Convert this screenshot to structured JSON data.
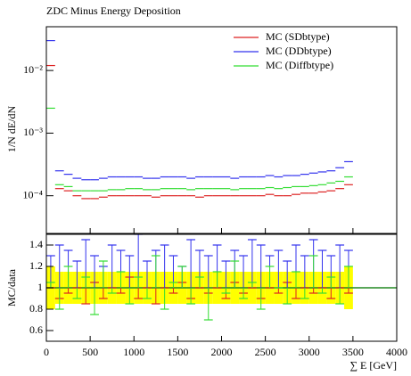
{
  "chart_data": [
    {
      "type": "histogram",
      "title": "ZDC Minus Energy Deposition",
      "ylabel": "1/N dE/dN",
      "log_y": true,
      "bins": [
        0,
        100,
        200,
        300,
        400,
        500,
        600,
        700,
        800,
        900,
        1000,
        1100,
        1200,
        1300,
        1400,
        1500,
        1600,
        1700,
        1800,
        1900,
        2000,
        2100,
        2200,
        2300,
        2400,
        2500,
        2600,
        2700,
        2800,
        2900,
        3000,
        3100,
        3200,
        3300,
        3400,
        3500
      ],
      "ylim": [
        2.5e-05,
        0.05
      ],
      "yticks": [
        {
          "value": 0.0001,
          "label": "10⁻⁴"
        },
        {
          "value": 0.001,
          "label": "10⁻³"
        },
        {
          "value": 0.01,
          "label": "10⁻²"
        }
      ],
      "legend": "upper right",
      "series": [
        {
          "name": "MC (SDbtype)",
          "color": "#dd2222",
          "values": [
            0.012,
            0.00013,
            0.00012,
            0.0001,
            9e-05,
            9e-05,
            9.5e-05,
            0.0001,
            0.0001,
            0.0001,
            0.0001,
            0.0001,
            9.5e-05,
            0.0001,
            0.0001,
            0.0001,
            0.0001,
            9.5e-05,
            0.0001,
            0.0001,
            0.0001,
            0.0001,
            0.0001,
            0.0001,
            0.0001,
            0.000105,
            0.0001,
            0.0001,
            0.000105,
            0.00011,
            0.00011,
            0.000115,
            0.00012,
            0.00013,
            0.00015
          ]
        },
        {
          "name": "MC (DDbtype)",
          "color": "#3333ee",
          "values": [
            0.03,
            0.00025,
            0.00022,
            0.00019,
            0.00018,
            0.00018,
            0.00019,
            0.0002,
            0.0002,
            0.0002,
            0.0002,
            0.00019,
            0.00019,
            0.0002,
            0.0002,
            0.0002,
            0.00019,
            0.0002,
            0.0002,
            0.0002,
            0.0002,
            0.00019,
            0.0002,
            0.0002,
            0.0002,
            0.00021,
            0.0002,
            0.00021,
            0.00021,
            0.00022,
            0.00023,
            0.00024,
            0.00025,
            0.00028,
            0.00035
          ]
        },
        {
          "name": "MC (Diffbtype)",
          "color": "#33dd33",
          "values": [
            0.0025,
            0.00015,
            0.00014,
            0.00012,
            0.00012,
            0.00012,
            0.00012,
            0.000125,
            0.000125,
            0.00013,
            0.00013,
            0.000125,
            0.000125,
            0.00013,
            0.00013,
            0.00013,
            0.000125,
            0.00013,
            0.00013,
            0.00013,
            0.00013,
            0.000125,
            0.00013,
            0.00013,
            0.00013,
            0.000135,
            0.00013,
            0.000135,
            0.00014,
            0.00014,
            0.000145,
            0.00015,
            0.00016,
            0.00017,
            0.0002
          ]
        }
      ]
    },
    {
      "type": "ratio",
      "ylabel": "MC/data",
      "xlabel": "∑ E [GeV]",
      "xlim": [
        0,
        4000
      ],
      "xticks": [
        0,
        500,
        1000,
        1500,
        2000,
        2500,
        3000,
        3500,
        4000
      ],
      "ylim": [
        0.5,
        1.5
      ],
      "yticks": [
        0.6,
        0.8,
        1,
        1.2,
        1.4
      ],
      "reference": 1,
      "error_band": {
        "color": "#ffff00",
        "values": [
          0.2,
          0.15,
          0.15,
          0.15,
          0.15,
          0.15,
          0.15,
          0.15,
          0.15,
          0.15,
          0.15,
          0.15,
          0.15,
          0.15,
          0.15,
          0.15,
          0.15,
          0.15,
          0.15,
          0.15,
          0.15,
          0.15,
          0.15,
          0.15,
          0.15,
          0.15,
          0.15,
          0.15,
          0.15,
          0.15,
          0.15,
          0.15,
          0.15,
          0.15,
          0.2
        ]
      },
      "series": [
        {
          "color": "#dd2222",
          "values": [
            1.0,
            0.9,
            0.95,
            1.0,
            0.85,
            1.05,
            0.9,
            1.0,
            0.95,
            1.1,
            0.9,
            1.0,
            0.85,
            1.0,
            0.95,
            1.05,
            0.9,
            1.0,
            0.95,
            1.0,
            0.9,
            1.05,
            0.95,
            1.0,
            0.9,
            1.0,
            0.95,
            1.05,
            0.9,
            1.0,
            0.95,
            1.0,
            0.9,
            1.0,
            0.95
          ]
        },
        {
          "color": "#3333ee",
          "values": [
            1.3,
            1.4,
            1.35,
            1.25,
            1.45,
            1.3,
            1.2,
            1.4,
            1.35,
            1.3,
            1.5,
            1.25,
            1.35,
            1.4,
            1.3,
            1.2,
            1.45,
            1.35,
            1.3,
            1.4,
            1.25,
            1.35,
            1.3,
            1.45,
            1.4,
            1.3,
            1.35,
            1.25,
            1.4,
            1.3,
            1.45,
            1.35,
            1.3,
            1.4,
            1.35
          ]
        },
        {
          "color": "#33dd33",
          "values": [
            1.05,
            0.8,
            1.2,
            0.9,
            1.1,
            0.75,
            1.25,
            0.95,
            1.15,
            0.85,
            1.1,
            0.9,
            1.3,
            0.8,
            1.05,
            1.2,
            0.85,
            1.1,
            0.7,
            1.15,
            0.95,
            1.25,
            0.9,
            1.05,
            0.8,
            1.2,
            1.0,
            0.85,
            1.15,
            0.9,
            1.3,
            0.95,
            1.1,
            0.85,
            1.2
          ]
        }
      ]
    }
  ]
}
